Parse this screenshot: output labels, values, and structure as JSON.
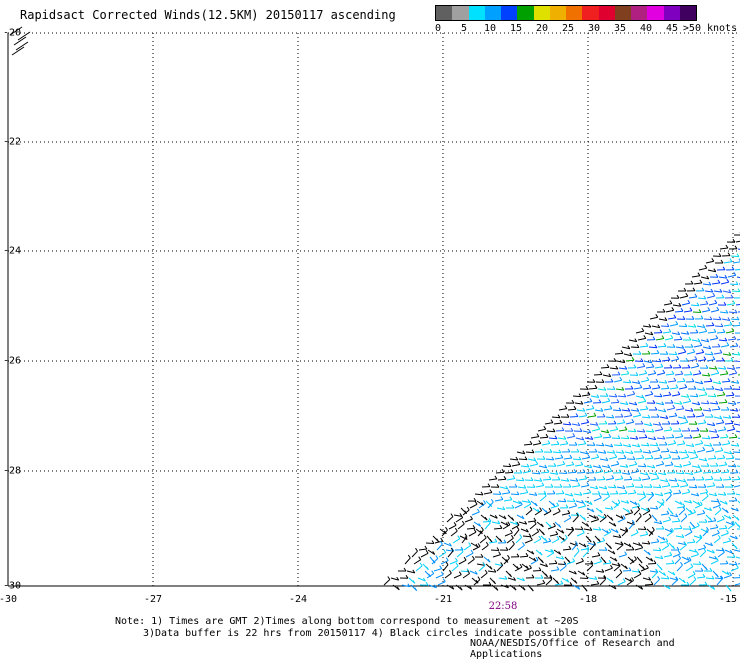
{
  "title": "Rapidsact Corrected Winds(12.5KM) 20150117 ascending",
  "legend": {
    "labels": [
      "0",
      "5",
      "10",
      "15",
      "20",
      "25",
      "30",
      "35",
      "40",
      "45",
      ">50 knots"
    ],
    "colors": [
      "#606060",
      "#a0a0a0",
      "#00e0ff",
      "#00a0ff",
      "#0040ff",
      "#00a000",
      "#e0e000",
      "#f0b000",
      "#f07000",
      "#f02020",
      "#e00030",
      "#804020",
      "#b02080",
      "#e000e0",
      "#8000c0",
      "#400060"
    ]
  },
  "map": {
    "y_labels": [
      "-20",
      "-22",
      "-24",
      "-26",
      "-28",
      "-30"
    ],
    "x_labels": [
      "-30",
      "-27",
      "-24",
      "-21",
      "-18",
      "-15"
    ],
    "time_label": "22:58"
  },
  "notes": {
    "line1": "Note: 1) Times are GMT 2)Times along bottom correspond to measurement at ~20S",
    "line2": "3)Data buffer is 22 hrs from 20150117 4) Black circles indicate possible contamination"
  },
  "credit": "NOAA/NESDIS/Office of Research and Applications"
}
